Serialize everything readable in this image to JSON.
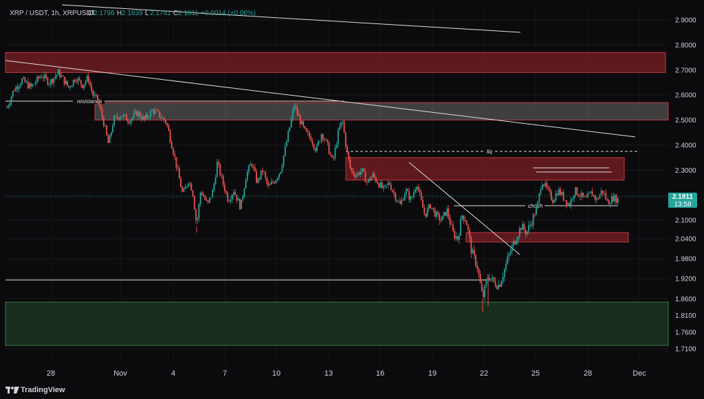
{
  "header": {
    "symbol": "XRP / USDT, 1h, XRPUSDT",
    "o_label": "O",
    "o_value": "2.1796",
    "h_label": "H",
    "h_value": "2.1839",
    "l_label": "L",
    "l_value": "2.1741",
    "c_label": "C",
    "c_value": "2.1811",
    "change": "+0.0014 (+0.06%)"
  },
  "price_badge": {
    "price": "2.1811",
    "countdown": "13:58"
  },
  "annotations": {
    "resistance": "resistance",
    "liq": "liq",
    "choch": "choch"
  },
  "branding": {
    "name": "TradingView"
  },
  "colors": {
    "up": "#26a69a",
    "down": "#ef5350",
    "supply_zone": "#7a1f24",
    "demand_zone": "#1e3a22",
    "grey_zone": "#6b6b6b"
  },
  "chart_data": {
    "type": "candlestick",
    "y_axis": {
      "ticks": [
        "2.9000",
        "2.8000",
        "2.7000",
        "2.6000",
        "2.5000",
        "2.4000",
        "2.3000",
        "2.2000",
        "2.1000",
        "2.0400",
        "1.9800",
        "1.9200",
        "1.8600",
        "1.8100",
        "1.7600",
        "1.7100"
      ],
      "range": [
        1.69,
        2.95
      ]
    },
    "x_axis": {
      "ticks": [
        "28",
        "Nov",
        "4",
        "7",
        "10",
        "13",
        "16",
        "19",
        "22",
        "25",
        "28",
        "Dec"
      ]
    },
    "last_price": 2.1811,
    "zones": [
      {
        "label": "",
        "kind": "supply",
        "from": "oct-26",
        "to": "dec-02",
        "y_low": 2.69,
        "y_high": 2.77
      },
      {
        "label": "",
        "kind": "grey",
        "from": "oct-30",
        "to": "dec-02",
        "y_low": 2.5,
        "y_high": 2.57
      },
      {
        "label": "",
        "kind": "supply",
        "from": "nov-13",
        "to": "nov-30",
        "y_low": 2.26,
        "y_high": 2.35
      },
      {
        "label": "",
        "kind": "supply",
        "from": "nov-20",
        "to": "dec-01",
        "y_low": 2.03,
        "y_high": 2.06
      },
      {
        "label": "",
        "kind": "demand",
        "from": "oct-26",
        "to": "dec-02",
        "y_low": 1.72,
        "y_high": 1.85
      }
    ],
    "path": [
      [
        0,
        2.55
      ],
      [
        10,
        2.62
      ],
      [
        22,
        2.66
      ],
      [
        35,
        2.63
      ],
      [
        50,
        2.68
      ],
      [
        62,
        2.65
      ],
      [
        75,
        2.69
      ],
      [
        90,
        2.63
      ],
      [
        100,
        2.67
      ],
      [
        110,
        2.64
      ],
      [
        118,
        2.67
      ],
      [
        125,
        2.6
      ],
      [
        132,
        2.58
      ],
      [
        140,
        2.5
      ],
      [
        148,
        2.4
      ],
      [
        155,
        2.5
      ],
      [
        165,
        2.52
      ],
      [
        178,
        2.5
      ],
      [
        190,
        2.53
      ],
      [
        200,
        2.5
      ],
      [
        212,
        2.54
      ],
      [
        222,
        2.52
      ],
      [
        232,
        2.49
      ],
      [
        240,
        2.4
      ],
      [
        248,
        2.3
      ],
      [
        256,
        2.2
      ],
      [
        264,
        2.26
      ],
      [
        270,
        2.22
      ],
      [
        276,
        2.08
      ],
      [
        282,
        2.22
      ],
      [
        292,
        2.16
      ],
      [
        300,
        2.22
      ],
      [
        306,
        2.33
      ],
      [
        314,
        2.25
      ],
      [
        322,
        2.18
      ],
      [
        330,
        2.22
      ],
      [
        340,
        2.15
      ],
      [
        348,
        2.28
      ],
      [
        356,
        2.33
      ],
      [
        364,
        2.25
      ],
      [
        372,
        2.3
      ],
      [
        380,
        2.23
      ],
      [
        390,
        2.26
      ],
      [
        398,
        2.3
      ],
      [
        406,
        2.4
      ],
      [
        412,
        2.48
      ],
      [
        418,
        2.56
      ],
      [
        426,
        2.5
      ],
      [
        434,
        2.45
      ],
      [
        442,
        2.43
      ],
      [
        450,
        2.38
      ],
      [
        458,
        2.45
      ],
      [
        466,
        2.4
      ],
      [
        474,
        2.33
      ],
      [
        482,
        2.45
      ],
      [
        488,
        2.5
      ],
      [
        494,
        2.38
      ],
      [
        500,
        2.3
      ],
      [
        508,
        2.28
      ],
      [
        516,
        2.3
      ],
      [
        524,
        2.25
      ],
      [
        532,
        2.28
      ],
      [
        540,
        2.25
      ],
      [
        548,
        2.22
      ],
      [
        556,
        2.25
      ],
      [
        564,
        2.2
      ],
      [
        572,
        2.16
      ],
      [
        580,
        2.22
      ],
      [
        588,
        2.18
      ],
      [
        596,
        2.25
      ],
      [
        602,
        2.18
      ],
      [
        608,
        2.12
      ],
      [
        616,
        2.16
      ],
      [
        624,
        2.12
      ],
      [
        632,
        2.1
      ],
      [
        640,
        2.14
      ],
      [
        648,
        2.06
      ],
      [
        656,
        2.04
      ],
      [
        662,
        2.12
      ],
      [
        668,
        2.1
      ],
      [
        676,
        2.0
      ],
      [
        684,
        1.96
      ],
      [
        692,
        1.86
      ],
      [
        700,
        1.93
      ],
      [
        708,
        1.91
      ],
      [
        716,
        1.9
      ],
      [
        724,
        1.95
      ],
      [
        732,
        2.0
      ],
      [
        740,
        2.04
      ],
      [
        748,
        2.08
      ],
      [
        756,
        2.06
      ],
      [
        764,
        2.1
      ],
      [
        772,
        2.16
      ],
      [
        778,
        2.26
      ],
      [
        786,
        2.22
      ],
      [
        794,
        2.18
      ],
      [
        802,
        2.22
      ],
      [
        810,
        2.19
      ],
      [
        818,
        2.16
      ],
      [
        826,
        2.22
      ],
      [
        834,
        2.2
      ],
      [
        842,
        2.18
      ],
      [
        850,
        2.21
      ],
      [
        858,
        2.18
      ],
      [
        866,
        2.22
      ],
      [
        874,
        2.17
      ],
      [
        882,
        2.19
      ],
      [
        890,
        2.18
      ]
    ]
  }
}
